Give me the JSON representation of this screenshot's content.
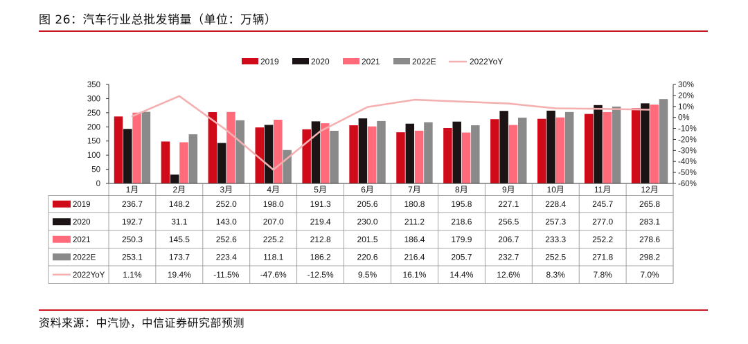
{
  "header": {
    "title": "图 26：汽车行业总批发销量（单位：万辆）"
  },
  "footer": {
    "source": "资料来源：中汽协，中信证券研究部预测"
  },
  "colors": {
    "2019": "#cf0a19",
    "2020": "#1c1414",
    "2021": "#ff6b7a",
    "2022E": "#8a8a8a",
    "2022YoY": "#f4b0b0",
    "rule": "#c9151e"
  },
  "chart_data": {
    "type": "bar",
    "categories": [
      "1月",
      "2月",
      "3月",
      "4月",
      "5月",
      "6月",
      "7月",
      "8月",
      "9月",
      "10月",
      "11月",
      "12月"
    ],
    "series": [
      {
        "name": "2019",
        "type": "bar",
        "values": [
          236.7,
          148.2,
          252.0,
          198.0,
          191.3,
          205.6,
          180.8,
          195.8,
          227.1,
          228.4,
          245.7,
          265.8
        ],
        "labels": [
          "236.7",
          "148.2",
          "252.0",
          "198.0",
          "191.3",
          "205.6",
          "180.8",
          "195.8",
          "227.1",
          "228.4",
          "245.7",
          "265.8"
        ]
      },
      {
        "name": "2020",
        "type": "bar",
        "values": [
          192.7,
          31.1,
          143.0,
          207.0,
          219.4,
          230.0,
          211.2,
          218.6,
          256.5,
          257.3,
          277.0,
          283.1
        ],
        "labels": [
          "192.7",
          "31.1",
          "143.0",
          "207.0",
          "219.4",
          "230.0",
          "211.2",
          "218.6",
          "256.5",
          "257.3",
          "277.0",
          "283.1"
        ]
      },
      {
        "name": "2021",
        "type": "bar",
        "values": [
          250.3,
          145.5,
          252.6,
          225.2,
          212.8,
          201.5,
          186.4,
          179.9,
          206.7,
          233.3,
          252.2,
          278.6
        ],
        "labels": [
          "250.3",
          "145.5",
          "252.6",
          "225.2",
          "212.8",
          "201.5",
          "186.4",
          "179.9",
          "206.7",
          "233.3",
          "252.2",
          "278.6"
        ]
      },
      {
        "name": "2022E",
        "type": "bar",
        "values": [
          253.1,
          173.7,
          223.4,
          118.1,
          186.2,
          220.6,
          216.4,
          205.7,
          232.7,
          252.5,
          271.8,
          298.2
        ],
        "labels": [
          "253.1",
          "173.7",
          "223.4",
          "118.1",
          "186.2",
          "220.6",
          "216.4",
          "205.7",
          "232.7",
          "252.5",
          "271.8",
          "298.2"
        ]
      },
      {
        "name": "2022YoY",
        "type": "line",
        "axis": "right",
        "values": [
          1.1,
          19.4,
          -11.5,
          -47.6,
          -12.5,
          9.5,
          16.1,
          14.4,
          12.6,
          8.3,
          7.8,
          7.0
        ],
        "labels": [
          "1.1%",
          "19.4%",
          "-11.5%",
          "-47.6%",
          "-12.5%",
          "9.5%",
          "16.1%",
          "14.4%",
          "12.6%",
          "8.3%",
          "7.8%",
          "7.0%"
        ]
      }
    ],
    "y_left": {
      "ticks": [
        "0",
        "50",
        "100",
        "150",
        "200",
        "250",
        "300",
        "350"
      ],
      "ylim": [
        0,
        350
      ]
    },
    "y_right": {
      "ticks": [
        "30%",
        "20%",
        "10%",
        "0%",
        "-10%",
        "-20%",
        "-30%",
        "-40%",
        "-50%",
        "-60%"
      ],
      "ylim": [
        -60,
        30
      ]
    },
    "legend": {
      "placement": "top",
      "entries": [
        "2019",
        "2020",
        "2021",
        "2022E",
        "2022YoY"
      ]
    },
    "data_table": true,
    "grid": false
  }
}
